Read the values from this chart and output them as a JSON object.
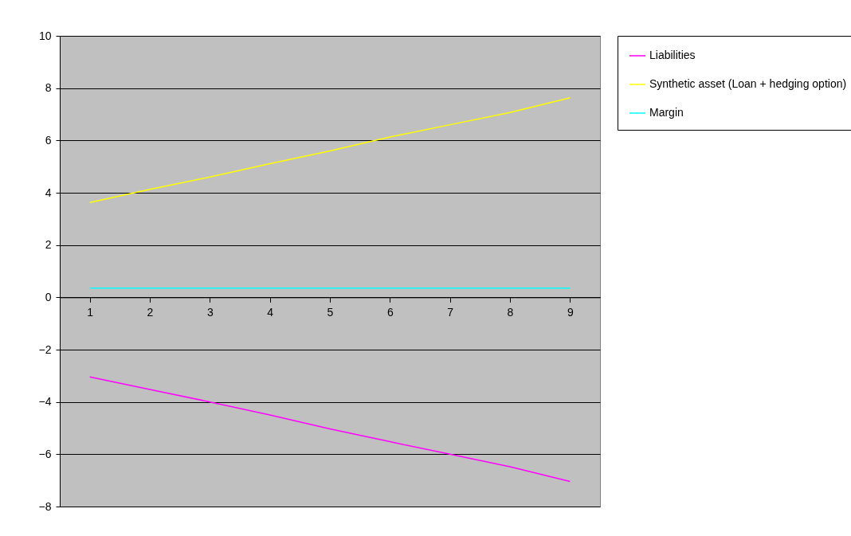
{
  "chart_data": {
    "type": "line",
    "categories": [
      "1",
      "2",
      "3",
      "4",
      "5",
      "6",
      "7",
      "8",
      "9"
    ],
    "series": [
      {
        "name": "Liabilities",
        "color": "#ff00ff",
        "values": [
          -3.04,
          -3.52,
          -4.0,
          -4.5,
          -5.03,
          -5.52,
          -6.0,
          -6.48,
          -7.04
        ]
      },
      {
        "name": "Synthetic asset (Loan + hedging option)",
        "color": "#ffff00",
        "values": [
          3.63,
          4.13,
          4.6,
          5.11,
          5.6,
          6.13,
          6.6,
          7.07,
          7.63
        ]
      },
      {
        "name": "Margin",
        "color": "#00ffff",
        "values": [
          0.35,
          0.35,
          0.35,
          0.35,
          0.35,
          0.35,
          0.35,
          0.35,
          0.35
        ]
      }
    ],
    "ylim": [
      -8,
      10
    ],
    "yticks": [
      -8,
      -6,
      -4,
      -2,
      0,
      2,
      4,
      6,
      8,
      10
    ],
    "grid": "y",
    "legend": "right",
    "marker": "none",
    "line_style": "solid"
  }
}
